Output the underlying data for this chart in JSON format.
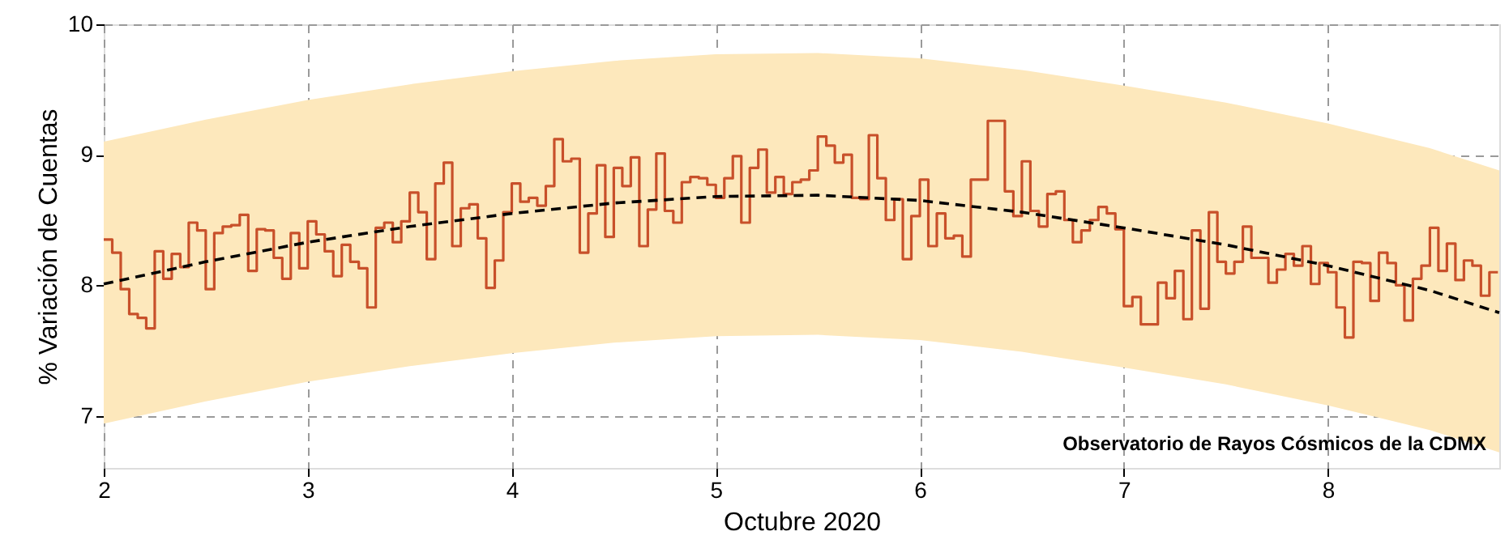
{
  "chart_data": {
    "type": "step",
    "xlabel": "Octubre 2020",
    "ylabel": "% Variación de Cuentas",
    "xlim": [
      2,
      8.84
    ],
    "ylim": [
      6.6,
      10
    ],
    "xticks": [
      2,
      3,
      4,
      5,
      6,
      7,
      8
    ],
    "yticks": [
      7,
      8,
      9,
      10
    ],
    "grid": true,
    "annotations": [
      "Observatorio de Rayos Cósmicos de la CDMX"
    ],
    "series": [
      {
        "color": "#c8502a",
        "line_style": "solid",
        "x": [
          2,
          2.0417,
          2.0833,
          2.125,
          2.1667,
          2.2083,
          2.25,
          2.2917,
          2.3333,
          2.375,
          2.4167,
          2.4583,
          2.5,
          2.5417,
          2.5833,
          2.625,
          2.6667,
          2.7083,
          2.75,
          2.7917,
          2.8333,
          2.875,
          2.9167,
          2.9583,
          3,
          3.0417,
          3.0833,
          3.125,
          3.1667,
          3.2083,
          3.25,
          3.2917,
          3.3333,
          3.375,
          3.4167,
          3.4583,
          3.5,
          3.5417,
          3.5833,
          3.625,
          3.6667,
          3.7083,
          3.75,
          3.7917,
          3.8333,
          3.875,
          3.9167,
          3.9583,
          4,
          4.0417,
          4.0833,
          4.125,
          4.1667,
          4.2083,
          4.25,
          4.2917,
          4.3333,
          4.375,
          4.4167,
          4.4583,
          4.5,
          4.5417,
          4.5833,
          4.625,
          4.6667,
          4.7083,
          4.75,
          4.7917,
          4.8333,
          4.875,
          4.9167,
          4.9583,
          5,
          5.0417,
          5.0833,
          5.125,
          5.1667,
          5.2083,
          5.25,
          5.2917,
          5.3333,
          5.375,
          5.4167,
          5.4583,
          5.5,
          5.5417,
          5.5833,
          5.625,
          5.6667,
          5.7083,
          5.75,
          5.7917,
          5.8333,
          5.875,
          5.9167,
          5.9583,
          6,
          6.0417,
          6.0833,
          6.125,
          6.1667,
          6.2083,
          6.25,
          6.2917,
          6.3333,
          6.375,
          6.4167,
          6.4583,
          6.5,
          6.5417,
          6.5833,
          6.625,
          6.6667,
          6.7083,
          6.75,
          6.7917,
          6.8333,
          6.875,
          6.9167,
          6.9583,
          7,
          7.0417,
          7.0833,
          7.125,
          7.1667,
          7.2083,
          7.25,
          7.2917,
          7.3333,
          7.375,
          7.4167,
          7.4583,
          7.5,
          7.5417,
          7.5833,
          7.625,
          7.6667,
          7.7083,
          7.75,
          7.7917,
          7.8333,
          7.875,
          7.9167,
          7.9583,
          8,
          8.0417,
          8.0833,
          8.125,
          8.1667,
          8.2083,
          8.25,
          8.2917,
          8.3333,
          8.375,
          8.4167,
          8.4583,
          8.5,
          8.5417,
          8.5833,
          8.625,
          8.6667,
          8.7083,
          8.75,
          8.7917,
          8.8333
        ],
        "values": [
          8.35,
          8.25,
          7.97,
          7.78,
          7.75,
          7.67,
          8.26,
          8.05,
          8.24,
          8.14,
          8.48,
          8.42,
          7.97,
          8.4,
          8.45,
          8.46,
          8.54,
          8.11,
          8.43,
          8.42,
          8.21,
          8.05,
          8.4,
          8.13,
          8.49,
          8.39,
          8.26,
          8.07,
          8.31,
          8.18,
          8.13,
          7.83,
          8.44,
          8.48,
          8.33,
          8.49,
          8.71,
          8.56,
          8.2,
          8.78,
          8.94,
          8.3,
          8.59,
          8.62,
          8.36,
          7.98,
          8.19,
          8.56,
          8.78,
          8.64,
          8.67,
          8.61,
          8.76,
          9.12,
          8.95,
          8.97,
          8.25,
          8.55,
          8.92,
          8.37,
          8.9,
          8.76,
          8.98,
          8.3,
          8.58,
          9.01,
          8.57,
          8.48,
          8.79,
          8.83,
          8.82,
          8.77,
          8.67,
          8.82,
          8.99,
          8.48,
          8.9,
          9.04,
          8.71,
          8.83,
          8.7,
          8.79,
          8.81,
          8.88,
          9.14,
          9.07,
          8.94,
          9.0,
          8.67,
          8.66,
          9.15,
          8.82,
          8.5,
          8.66,
          8.2,
          8.53,
          8.81,
          8.3,
          8.55,
          8.36,
          8.38,
          8.22,
          8.81,
          8.81,
          9.26,
          9.26,
          8.72,
          8.53,
          8.95,
          8.57,
          8.45,
          8.7,
          8.72,
          8.5,
          8.33,
          8.42,
          8.5,
          8.6,
          8.55,
          8.43,
          7.84,
          7.91,
          7.7,
          7.7,
          8.02,
          7.9,
          8.11,
          7.74,
          8.42,
          7.82,
          8.56,
          8.18,
          8.09,
          8.18,
          8.45,
          8.21,
          8.21,
          8.02,
          8.12,
          8.24,
          8.15,
          8.3,
          8.01,
          8.17,
          8.1,
          7.83,
          7.6,
          8.18,
          8.17,
          7.88,
          8.25,
          8.17,
          8.0,
          7.73,
          8.05,
          8.15,
          8.44,
          8.11,
          8.32,
          8.04,
          8.19,
          8.15,
          7.92,
          8.1,
          8.1
        ]
      },
      {
        "type": "line",
        "color": "#000000",
        "line_style": "dashed",
        "x": [
          2,
          2.5,
          3,
          3.5,
          4,
          4.5,
          5,
          5.5,
          6,
          6.5,
          7,
          7.5,
          8,
          8.5,
          8.84
        ],
        "values": [
          8.01,
          8.18,
          8.33,
          8.45,
          8.55,
          8.63,
          8.68,
          8.69,
          8.65,
          8.56,
          8.44,
          8.31,
          8.15,
          7.96,
          7.79
        ],
        "lower": [
          6.94,
          7.11,
          7.26,
          7.38,
          7.48,
          7.56,
          7.61,
          7.62,
          7.58,
          7.49,
          7.37,
          7.24,
          7.08,
          6.89,
          6.72
        ],
        "upper": [
          9.1,
          9.27,
          9.42,
          9.54,
          9.64,
          9.72,
          9.77,
          9.78,
          9.74,
          9.65,
          9.53,
          9.4,
          9.24,
          9.05,
          8.88
        ]
      }
    ]
  }
}
